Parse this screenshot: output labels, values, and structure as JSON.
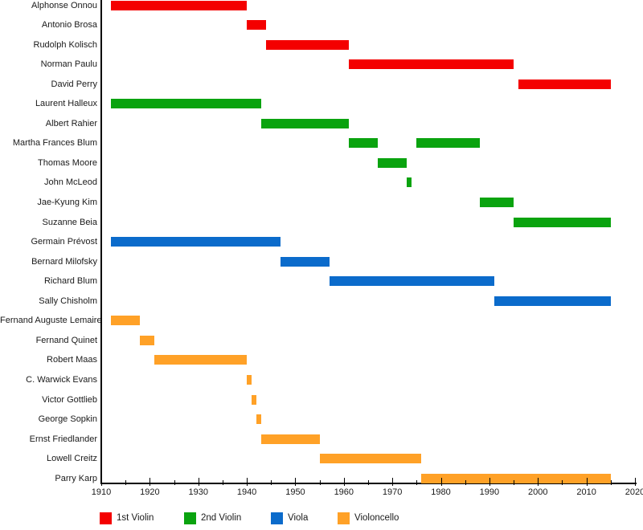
{
  "chart_data": {
    "type": "gantt",
    "title": "",
    "xlabel": "",
    "ylabel": "",
    "grid": false,
    "legend_position": "bottom",
    "x_axis": {
      "min": 1910,
      "max": 2020,
      "major_tick_step": 10,
      "minor_tick_step": 5,
      "tick_labels": [
        "1910",
        "1920",
        "1930",
        "1940",
        "1950",
        "1960",
        "1970",
        "1980",
        "1990",
        "2000",
        "2010",
        "2020"
      ]
    },
    "legend": [
      {
        "label": "1st Violin",
        "color": "#f40000"
      },
      {
        "label": "2nd Violin",
        "color": "#0aa30f"
      },
      {
        "label": "Viola",
        "color": "#0b6bcb"
      },
      {
        "label": "Violoncello",
        "color": "#ffa127"
      }
    ],
    "rows": [
      {
        "name": "Alphonse Onnou",
        "part": "1st Violin",
        "segments": [
          [
            1912,
            1940
          ]
        ]
      },
      {
        "name": "Antonio Brosa",
        "part": "1st Violin",
        "segments": [
          [
            1940,
            1944
          ]
        ]
      },
      {
        "name": "Rudolph Kolisch",
        "part": "1st Violin",
        "segments": [
          [
            1944,
            1961
          ]
        ]
      },
      {
        "name": "Norman Paulu",
        "part": "1st Violin",
        "segments": [
          [
            1961,
            1995
          ]
        ]
      },
      {
        "name": "David Perry",
        "part": "1st Violin",
        "segments": [
          [
            1996,
            2015
          ]
        ]
      },
      {
        "name": "Laurent Halleux",
        "part": "2nd Violin",
        "segments": [
          [
            1912,
            1943
          ]
        ]
      },
      {
        "name": "Albert Rahier",
        "part": "2nd Violin",
        "segments": [
          [
            1943,
            1961
          ]
        ]
      },
      {
        "name": "Martha Frances Blum",
        "part": "2nd Violin",
        "segments": [
          [
            1961,
            1967
          ],
          [
            1975,
            1988
          ]
        ]
      },
      {
        "name": "Thomas Moore",
        "part": "2nd Violin",
        "segments": [
          [
            1967,
            1973
          ]
        ]
      },
      {
        "name": "John McLeod",
        "part": "2nd Violin",
        "segments": [
          [
            1973,
            1974
          ]
        ]
      },
      {
        "name": "Jae-Kyung Kim",
        "part": "2nd Violin",
        "segments": [
          [
            1988,
            1995
          ]
        ]
      },
      {
        "name": "Suzanne Beia",
        "part": "2nd Violin",
        "segments": [
          [
            1995,
            2015
          ]
        ]
      },
      {
        "name": "Germain Prévost",
        "part": "Viola",
        "segments": [
          [
            1912,
            1947
          ]
        ]
      },
      {
        "name": "Bernard Milofsky",
        "part": "Viola",
        "segments": [
          [
            1947,
            1957
          ]
        ]
      },
      {
        "name": "Richard Blum",
        "part": "Viola",
        "segments": [
          [
            1957,
            1991
          ]
        ]
      },
      {
        "name": "Sally Chisholm",
        "part": "Viola",
        "segments": [
          [
            1991,
            2015
          ]
        ]
      },
      {
        "name": "Fernand Auguste Lemaire",
        "part": "Violoncello",
        "segments": [
          [
            1912,
            1918
          ]
        ]
      },
      {
        "name": "Fernand Quinet",
        "part": "Violoncello",
        "segments": [
          [
            1918,
            1921
          ]
        ]
      },
      {
        "name": "Robert Maas",
        "part": "Violoncello",
        "segments": [
          [
            1921,
            1940
          ]
        ]
      },
      {
        "name": "C. Warwick Evans",
        "part": "Violoncello",
        "segments": [
          [
            1940,
            1941
          ]
        ]
      },
      {
        "name": "Victor Gottlieb",
        "part": "Violoncello",
        "segments": [
          [
            1941,
            1942
          ]
        ]
      },
      {
        "name": "George Sopkin",
        "part": "Violoncello",
        "segments": [
          [
            1942,
            1943
          ]
        ]
      },
      {
        "name": "Ernst Friedlander",
        "part": "Violoncello",
        "segments": [
          [
            1943,
            1955
          ]
        ]
      },
      {
        "name": "Lowell Creitz",
        "part": "Violoncello",
        "segments": [
          [
            1955,
            1976
          ]
        ]
      },
      {
        "name": "Parry Karp",
        "part": "Violoncello",
        "segments": [
          [
            1976,
            2015
          ]
        ]
      }
    ]
  }
}
